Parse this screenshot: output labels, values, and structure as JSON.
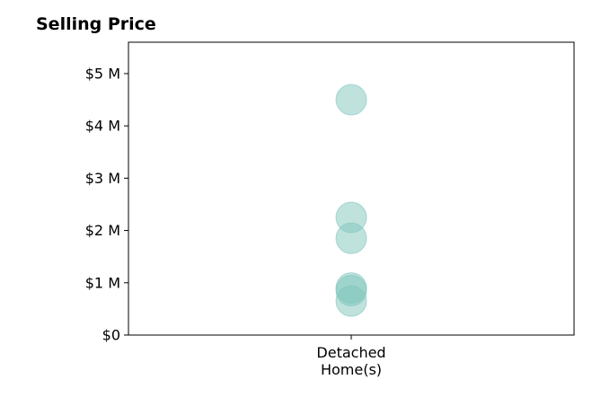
{
  "chart_data": {
    "type": "scatter",
    "title": "Selling Price",
    "xlabel": "",
    "ylabel": "",
    "categories": [
      "Detached\nHome(s)"
    ],
    "series": [
      {
        "category": "Detached\nHome(s)",
        "values": [
          4500000,
          2250000,
          1850000,
          900000,
          850000,
          650000
        ]
      }
    ],
    "ylim": [
      0,
      5600000
    ],
    "yticks": [
      {
        "value": 0,
        "label": "$0"
      },
      {
        "value": 1000000,
        "label": "$1 M"
      },
      {
        "value": 2000000,
        "label": "$2 M"
      },
      {
        "value": 3000000,
        "label": "$3 M"
      },
      {
        "value": 4000000,
        "label": "$4 M"
      },
      {
        "value": 5000000,
        "label": "$5 M"
      }
    ],
    "marker_color": "#7fc6bc",
    "grid": false,
    "legend": "none"
  }
}
